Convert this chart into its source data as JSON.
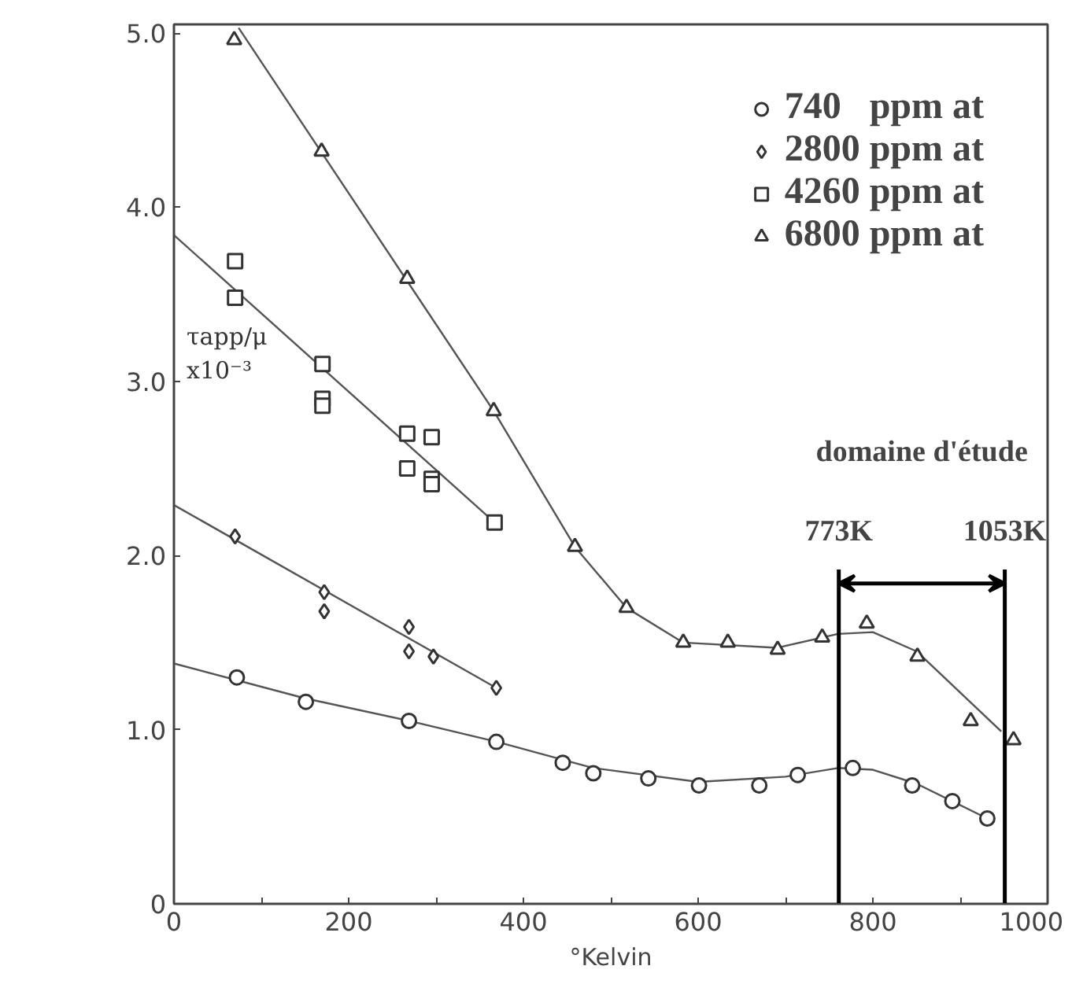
{
  "chart_data": {
    "type": "scatter",
    "xlabel": "°Kelvin",
    "ylabel": "τapp/μ\nx10⁻³",
    "xlim": [
      0,
      1000
    ],
    "ylim": [
      0,
      5.05
    ],
    "xticks": [
      0,
      {
        "value": 100,
        "label": null
      },
      200,
      {
        "value": 300,
        "label": null
      },
      400,
      {
        "value": 500,
        "label": null
      },
      600,
      {
        "value": 700,
        "label": null
      },
      800,
      {
        "value": 900,
        "label": null
      },
      1000
    ],
    "yticks": [
      0,
      {
        "value": 1,
        "label": "1.0"
      },
      {
        "value": 2,
        "label": "2.0"
      },
      {
        "value": 3,
        "label": "3.0"
      },
      {
        "value": 4,
        "label": "4.0"
      },
      {
        "value": 5,
        "label": "5.0"
      }
    ],
    "grid": false,
    "legend": "top right",
    "series": [
      {
        "type": "line",
        "color": "#555555",
        "x": [
          0,
          150,
          270,
          370,
          480,
          600,
          700,
          760,
          800,
          850,
          931
        ],
        "values": [
          1.38,
          1.18,
          1.05,
          0.93,
          0.78,
          0.7,
          0.73,
          0.78,
          0.77,
          0.69,
          0.49
        ]
      },
      {
        "type": "line",
        "color": "#555555",
        "x": [
          0,
          369
        ],
        "values": [
          2.29,
          1.24
        ]
      },
      {
        "type": "line",
        "color": "#555555",
        "x": [
          0,
          367
        ],
        "values": [
          3.84,
          2.19
        ]
      },
      {
        "type": "line",
        "color": "#555555",
        "x": [
          74,
          366,
          459,
          518,
          583,
          690,
          760,
          800,
          850,
          947
        ],
        "values": [
          5.03,
          2.83,
          2.05,
          1.7,
          1.5,
          1.47,
          1.55,
          1.56,
          1.45,
          0.99
        ]
      },
      {
        "name": "740   ppm at",
        "marker": "circle",
        "color": "#333333",
        "x": [
          72,
          151,
          269,
          369,
          445,
          480,
          543,
          601,
          670,
          714,
          777,
          845,
          891,
          931
        ],
        "values": [
          1.3,
          1.16,
          1.05,
          0.93,
          0.81,
          0.75,
          0.72,
          0.68,
          0.68,
          0.74,
          0.78,
          0.68,
          0.59,
          0.49
        ]
      },
      {
        "name": "2800 ppm at",
        "marker": "diamond",
        "color": "#333333",
        "x": [
          70,
          172,
          172,
          269,
          269,
          297,
          369
        ],
        "values": [
          2.11,
          1.79,
          1.68,
          1.59,
          1.45,
          1.42,
          1.24
        ]
      },
      {
        "name": "4260 ppm at",
        "marker": "square",
        "color": "#333333",
        "x": [
          70,
          70,
          170,
          170,
          170,
          267,
          295,
          267,
          295,
          295,
          367
        ],
        "values": [
          3.69,
          3.48,
          3.1,
          2.9,
          2.86,
          2.7,
          2.68,
          2.5,
          2.44,
          2.41,
          2.19
        ]
      },
      {
        "name": "6800 ppm at",
        "marker": "triangle",
        "color": "#333333",
        "x": [
          69,
          169,
          267,
          366,
          459,
          518,
          583,
          634,
          691,
          742,
          793,
          851,
          912,
          961
        ],
        "values": [
          4.96,
          4.32,
          3.59,
          2.83,
          2.05,
          1.7,
          1.5,
          1.5,
          1.46,
          1.53,
          1.61,
          1.42,
          1.05,
          0.94
        ]
      }
    ],
    "ref_lines": [
      {
        "axis": "x",
        "value": 761,
        "label": "773K",
        "color": "#000000"
      },
      {
        "axis": "x",
        "value": 951,
        "label": "1053K",
        "color": "#000000"
      }
    ],
    "annotations": [
      "domaine d'étude"
    ]
  }
}
